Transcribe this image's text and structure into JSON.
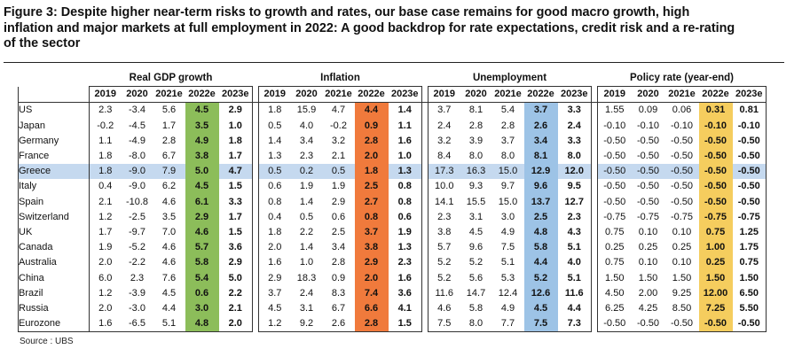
{
  "title": "Figure 3: Despite higher near-term risks to growth and rates, our base case remains for good macro growth, high inflation and major markets at full employment in 2022: A good backdrop for rate expectations, credit risk and a re-rating of the sector",
  "source": "Source : UBS",
  "colors": {
    "gdp_2022e": "#8cbd5a",
    "inflation_2022e": "#f07a3c",
    "unemployment_2022e": "#9dc3e6",
    "policy_2022e": "#f5cd5e",
    "highlight_row": "#c5d9ef"
  },
  "highlight_country": "Greece",
  "chart_data": {
    "type": "table",
    "title": "Figure 3: Despite higher near-term risks to growth and rates, our base case remains for good macro growth, high inflation and major markets at full employment in 2022: A good backdrop for rate expectations, credit risk and a re-rating of the sector",
    "groups": [
      "Real GDP growth",
      "Inflation",
      "Unemployment",
      "Policy rate (year-end)"
    ],
    "years": [
      "2019",
      "2020",
      "2021e",
      "2022e",
      "2023e"
    ],
    "rows": [
      {
        "country": "US",
        "gdp": [
          "2.3",
          "-3.4",
          "5.6",
          "4.5",
          "2.9"
        ],
        "inflation": [
          "1.8",
          "15.9",
          "4.7",
          "4.4",
          "1.4"
        ],
        "unemployment": [
          "3.7",
          "8.1",
          "5.4",
          "3.7",
          "3.3"
        ],
        "policy": [
          "1.55",
          "0.09",
          "0.06",
          "0.31",
          "0.81"
        ]
      },
      {
        "country": "Japan",
        "gdp": [
          "-0.2",
          "-4.5",
          "1.7",
          "3.5",
          "1.0"
        ],
        "inflation": [
          "0.5",
          "4.0",
          "-0.2",
          "0.9",
          "1.1"
        ],
        "unemployment": [
          "2.4",
          "2.8",
          "2.8",
          "2.6",
          "2.4"
        ],
        "policy": [
          "-0.10",
          "-0.10",
          "-0.10",
          "-0.10",
          "-0.10"
        ]
      },
      {
        "country": "Germany",
        "gdp": [
          "1.1",
          "-4.9",
          "2.8",
          "4.9",
          "1.8"
        ],
        "inflation": [
          "1.4",
          "3.4",
          "3.2",
          "2.8",
          "1.6"
        ],
        "unemployment": [
          "3.2",
          "3.9",
          "3.7",
          "3.4",
          "3.3"
        ],
        "policy": [
          "-0.50",
          "-0.50",
          "-0.50",
          "-0.50",
          "-0.50"
        ]
      },
      {
        "country": "France",
        "gdp": [
          "1.8",
          "-8.0",
          "6.7",
          "3.8",
          "1.7"
        ],
        "inflation": [
          "1.3",
          "2.3",
          "2.1",
          "2.0",
          "1.0"
        ],
        "unemployment": [
          "8.4",
          "8.0",
          "8.0",
          "8.1",
          "8.0"
        ],
        "policy": [
          "-0.50",
          "-0.50",
          "-0.50",
          "-0.50",
          "-0.50"
        ]
      },
      {
        "country": "Greece",
        "gdp": [
          "1.8",
          "-9.0",
          "7.9",
          "5.0",
          "4.7"
        ],
        "inflation": [
          "0.5",
          "0.2",
          "0.5",
          "1.8",
          "1.3"
        ],
        "unemployment": [
          "17.3",
          "16.3",
          "15.0",
          "12.9",
          "12.0"
        ],
        "policy": [
          "-0.50",
          "-0.50",
          "-0.50",
          "-0.50",
          "-0.50"
        ]
      },
      {
        "country": "Italy",
        "gdp": [
          "0.4",
          "-9.0",
          "6.2",
          "4.5",
          "1.5"
        ],
        "inflation": [
          "0.6",
          "1.9",
          "1.9",
          "2.5",
          "0.8"
        ],
        "unemployment": [
          "10.0",
          "9.3",
          "9.7",
          "9.6",
          "9.5"
        ],
        "policy": [
          "-0.50",
          "-0.50",
          "-0.50",
          "-0.50",
          "-0.50"
        ]
      },
      {
        "country": "Spain",
        "gdp": [
          "2.1",
          "-10.8",
          "4.6",
          "6.1",
          "3.3"
        ],
        "inflation": [
          "0.8",
          "1.4",
          "2.9",
          "2.7",
          "0.8"
        ],
        "unemployment": [
          "14.1",
          "15.5",
          "15.0",
          "13.7",
          "12.7"
        ],
        "policy": [
          "-0.50",
          "-0.50",
          "-0.50",
          "-0.50",
          "-0.50"
        ]
      },
      {
        "country": "Switzerland",
        "gdp": [
          "1.2",
          "-2.5",
          "3.5",
          "2.9",
          "1.7"
        ],
        "inflation": [
          "0.4",
          "0.5",
          "0.6",
          "0.8",
          "0.6"
        ],
        "unemployment": [
          "2.3",
          "3.1",
          "3.0",
          "2.5",
          "2.3"
        ],
        "policy": [
          "-0.75",
          "-0.75",
          "-0.75",
          "-0.75",
          "-0.75"
        ]
      },
      {
        "country": "UK",
        "gdp": [
          "1.7",
          "-9.7",
          "7.0",
          "4.6",
          "1.5"
        ],
        "inflation": [
          "1.8",
          "2.2",
          "2.5",
          "3.7",
          "1.9"
        ],
        "unemployment": [
          "3.8",
          "4.5",
          "4.9",
          "4.8",
          "4.3"
        ],
        "policy": [
          "0.75",
          "0.10",
          "0.10",
          "0.75",
          "1.25"
        ]
      },
      {
        "country": "Canada",
        "gdp": [
          "1.9",
          "-5.2",
          "4.6",
          "5.7",
          "3.6"
        ],
        "inflation": [
          "2.0",
          "1.4",
          "3.4",
          "3.8",
          "1.3"
        ],
        "unemployment": [
          "5.7",
          "9.6",
          "7.5",
          "5.8",
          "5.1"
        ],
        "policy": [
          "0.25",
          "0.25",
          "0.25",
          "1.00",
          "1.75"
        ]
      },
      {
        "country": "Australia",
        "gdp": [
          "2.0",
          "-2.2",
          "4.6",
          "5.8",
          "2.9"
        ],
        "inflation": [
          "1.6",
          "1.0",
          "2.8",
          "2.9",
          "2.3"
        ],
        "unemployment": [
          "5.2",
          "5.2",
          "5.1",
          "4.4",
          "4.0"
        ],
        "policy": [
          "0.75",
          "0.10",
          "0.10",
          "0.25",
          "0.75"
        ]
      },
      {
        "country": "China",
        "gdp": [
          "6.0",
          "2.3",
          "7.6",
          "5.4",
          "5.0"
        ],
        "inflation": [
          "2.9",
          "18.3",
          "0.9",
          "2.0",
          "1.6"
        ],
        "unemployment": [
          "5.2",
          "5.6",
          "5.3",
          "5.2",
          "5.1"
        ],
        "policy": [
          "1.50",
          "1.50",
          "1.50",
          "1.50",
          "1.50"
        ]
      },
      {
        "country": "Brazil",
        "gdp": [
          "1.2",
          "-3.9",
          "4.5",
          "0.6",
          "2.2"
        ],
        "inflation": [
          "3.7",
          "2.4",
          "8.3",
          "7.4",
          "3.6"
        ],
        "unemployment": [
          "11.6",
          "14.7",
          "12.4",
          "12.6",
          "11.6"
        ],
        "policy": [
          "4.50",
          "2.00",
          "9.25",
          "12.00",
          "6.50"
        ]
      },
      {
        "country": "Russia",
        "gdp": [
          "2.0",
          "-3.0",
          "4.4",
          "3.0",
          "2.1"
        ],
        "inflation": [
          "4.5",
          "3.1",
          "6.7",
          "6.6",
          "4.1"
        ],
        "unemployment": [
          "4.6",
          "5.8",
          "4.9",
          "4.5",
          "4.4"
        ],
        "policy": [
          "6.25",
          "4.25",
          "8.50",
          "7.25",
          "5.50"
        ]
      },
      {
        "country": "Eurozone",
        "gdp": [
          "1.6",
          "-6.5",
          "5.1",
          "4.8",
          "2.0"
        ],
        "inflation": [
          "1.2",
          "9.2",
          "2.6",
          "2.8",
          "1.5"
        ],
        "unemployment": [
          "7.5",
          "8.0",
          "7.7",
          "7.5",
          "7.3"
        ],
        "policy": [
          "-0.50",
          "-0.50",
          "-0.50",
          "-0.50",
          "-0.50"
        ]
      }
    ]
  }
}
